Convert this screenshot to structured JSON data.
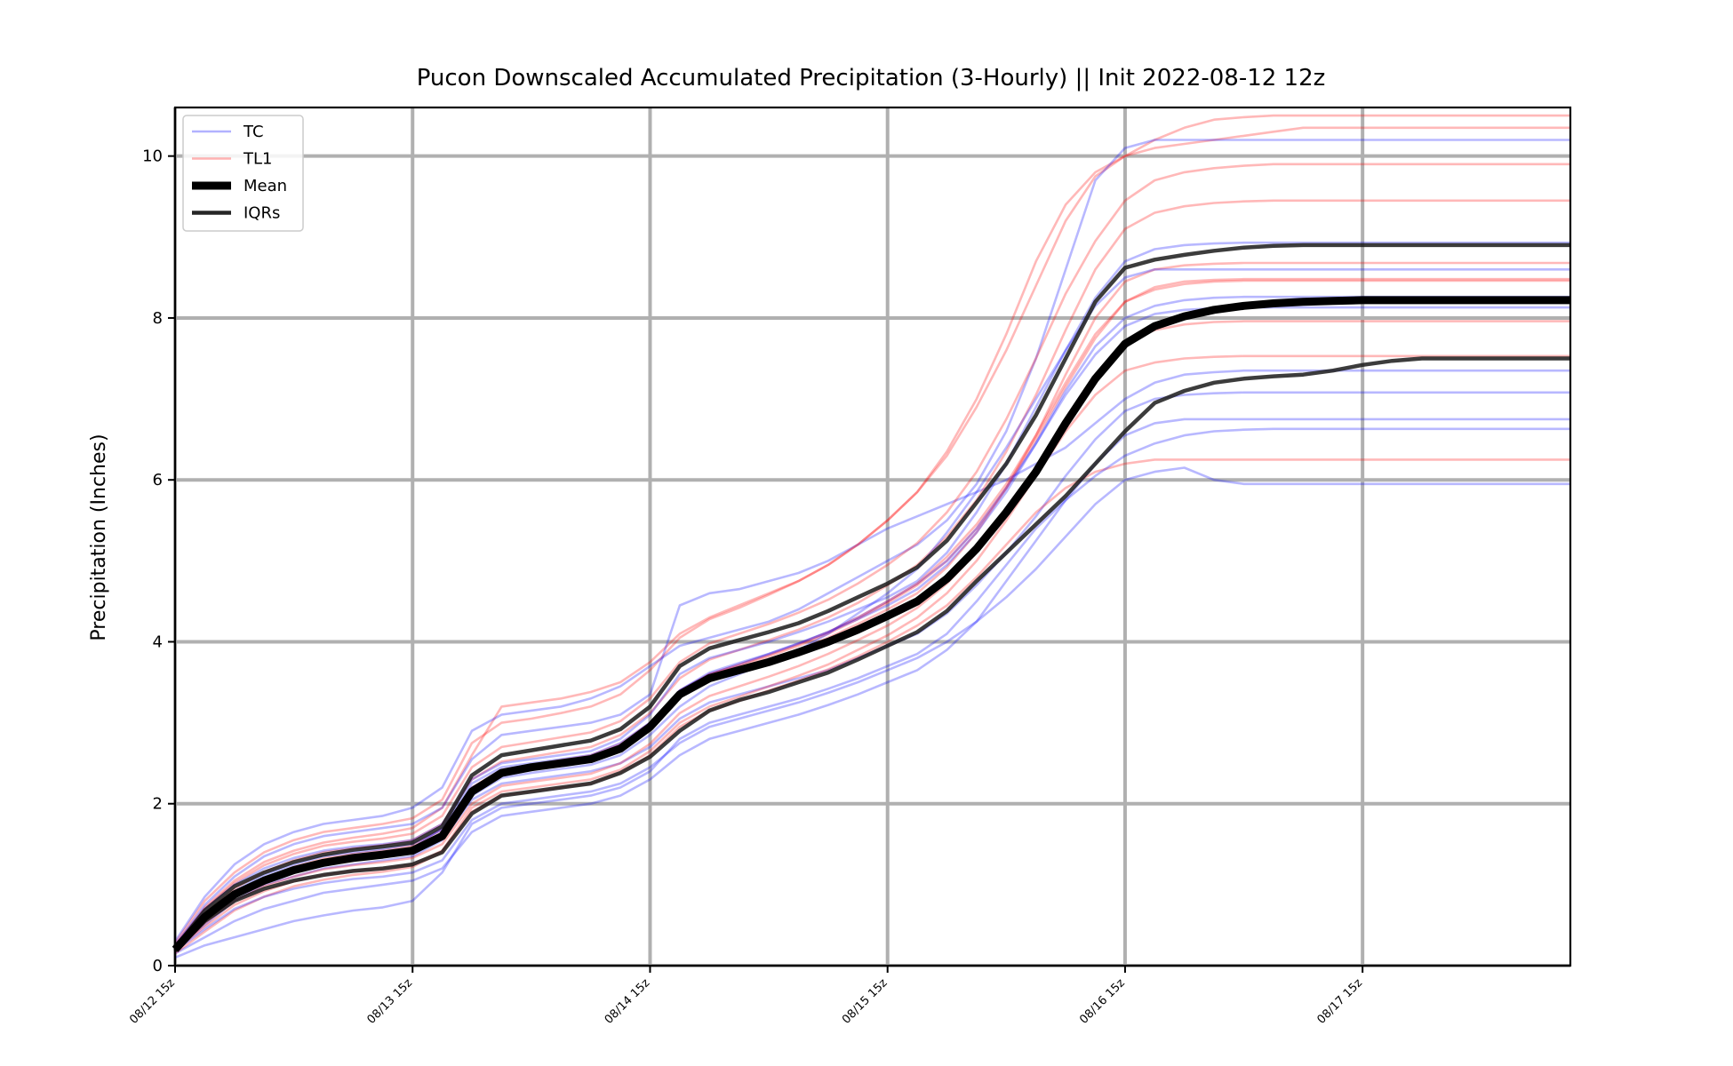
{
  "chart_data": {
    "type": "line",
    "title": "Pucon Downscaled Accumulated Precipitation (3-Hourly) || Init 2022-08-12 12z",
    "ylabel": "Precipitation (Inches)",
    "xlabel": "",
    "xlim": [
      0,
      47
    ],
    "ylim": [
      0,
      10.6
    ],
    "grid": true,
    "legend_position": "top-left",
    "x_ticks": [
      {
        "x": 0,
        "label": "08/12 15z"
      },
      {
        "x": 8,
        "label": "08/13 15z"
      },
      {
        "x": 16,
        "label": "08/14 15z"
      },
      {
        "x": 24,
        "label": "08/15 15z"
      },
      {
        "x": 32,
        "label": "08/16 15z"
      },
      {
        "x": 40,
        "label": "08/17 15z"
      }
    ],
    "y_ticks": [
      0,
      2,
      4,
      6,
      8,
      10
    ],
    "legend": [
      {
        "label": "TC",
        "color": "#0000ff",
        "style": "thin-light"
      },
      {
        "label": "TL1",
        "color": "#ff0000",
        "style": "thin-light"
      },
      {
        "label": "Mean",
        "color": "#000000",
        "style": "thick"
      },
      {
        "label": "IQRs",
        "color": "#000000",
        "style": "medium"
      }
    ],
    "colors": {
      "TC": "#0000ff",
      "TL1": "#ff0000",
      "Mean": "#000000",
      "IQRs": "#1a1a1a"
    },
    "x": [
      0,
      1,
      2,
      3,
      4,
      5,
      6,
      7,
      8,
      9,
      10,
      11,
      12,
      13,
      14,
      15,
      16,
      17,
      18,
      19,
      20,
      21,
      22,
      23,
      24,
      25,
      26,
      27,
      28,
      29,
      30,
      31,
      32,
      33,
      34,
      35,
      36,
      37,
      38,
      39,
      40,
      41,
      42,
      43,
      44,
      45,
      46,
      47
    ],
    "series": [
      {
        "name": "Mean",
        "values": [
          0.2,
          0.6,
          0.88,
          1.05,
          1.18,
          1.27,
          1.33,
          1.37,
          1.42,
          1.6,
          2.15,
          2.38,
          2.45,
          2.5,
          2.55,
          2.68,
          2.95,
          3.35,
          3.55,
          3.65,
          3.75,
          3.87,
          4.0,
          4.15,
          4.32,
          4.5,
          4.78,
          5.15,
          5.6,
          6.1,
          6.7,
          7.25,
          7.68,
          7.9,
          8.02,
          8.1,
          8.15,
          8.18,
          8.2,
          8.21,
          8.22,
          8.22,
          8.22,
          8.22,
          8.22,
          8.22,
          8.22,
          8.22
        ]
      },
      {
        "name": "IQRs",
        "values": [
          0.22,
          0.68,
          0.98,
          1.15,
          1.28,
          1.37,
          1.43,
          1.47,
          1.52,
          1.72,
          2.35,
          2.6,
          2.66,
          2.72,
          2.78,
          2.92,
          3.2,
          3.7,
          3.92,
          4.02,
          4.12,
          4.23,
          4.38,
          4.55,
          4.72,
          4.92,
          5.25,
          5.72,
          6.2,
          6.8,
          7.5,
          8.2,
          8.62,
          8.72,
          8.78,
          8.83,
          8.87,
          8.89,
          8.9,
          8.9,
          8.9,
          8.9,
          8.9,
          8.9,
          8.9,
          8.9,
          8.9,
          8.9
        ]
      },
      {
        "name": "IQRs",
        "values": [
          0.18,
          0.55,
          0.8,
          0.95,
          1.05,
          1.12,
          1.17,
          1.2,
          1.25,
          1.4,
          1.88,
          2.1,
          2.15,
          2.2,
          2.25,
          2.38,
          2.58,
          2.9,
          3.15,
          3.28,
          3.38,
          3.5,
          3.62,
          3.78,
          3.95,
          4.12,
          4.38,
          4.75,
          5.1,
          5.45,
          5.8,
          6.2,
          6.6,
          6.95,
          7.1,
          7.2,
          7.25,
          7.28,
          7.3,
          7.35,
          7.42,
          7.47,
          7.5,
          7.5,
          7.5,
          7.5,
          7.5,
          7.5
        ]
      }
    ],
    "ensemble": {
      "TC": [
        [
          0.2,
          0.5,
          0.8,
          1.0,
          1.1,
          1.2,
          1.25,
          1.3,
          1.35,
          1.55,
          2.05,
          2.25,
          2.3,
          2.35,
          2.4,
          2.5,
          2.7,
          3.05,
          3.25,
          3.35,
          3.45,
          3.55,
          3.65,
          3.8,
          3.95,
          4.1,
          4.35,
          4.7,
          5.1,
          5.55,
          6.05,
          6.5,
          6.85,
          7.0,
          7.05,
          7.07,
          7.08,
          7.08,
          7.08,
          7.08,
          7.08,
          7.08,
          7.08,
          7.08,
          7.08,
          7.08,
          7.08,
          7.08
        ],
        [
          0.25,
          0.75,
          1.1,
          1.35,
          1.5,
          1.6,
          1.65,
          1.7,
          1.75,
          1.95,
          2.55,
          2.85,
          2.9,
          2.95,
          3.0,
          3.1,
          3.35,
          4.45,
          4.6,
          4.65,
          4.75,
          4.85,
          5.0,
          5.2,
          5.4,
          5.55,
          5.7,
          5.85,
          6.0,
          6.2,
          6.4,
          6.7,
          7.0,
          7.2,
          7.3,
          7.33,
          7.35,
          7.35,
          7.35,
          7.35,
          7.35,
          7.35,
          7.35,
          7.35,
          7.35,
          7.35,
          7.35,
          7.35
        ],
        [
          0.15,
          0.35,
          0.55,
          0.7,
          0.8,
          0.9,
          0.95,
          1.0,
          1.05,
          1.2,
          1.65,
          1.85,
          1.9,
          1.95,
          2.0,
          2.1,
          2.3,
          2.6,
          2.8,
          2.9,
          3.0,
          3.1,
          3.22,
          3.35,
          3.5,
          3.65,
          3.9,
          4.25,
          4.75,
          5.25,
          5.75,
          6.2,
          6.55,
          6.7,
          6.75,
          6.75,
          6.75,
          6.75,
          6.75,
          6.75,
          6.75,
          6.75,
          6.75,
          6.75,
          6.75,
          6.75,
          6.75,
          6.75
        ],
        [
          0.3,
          0.85,
          1.25,
          1.5,
          1.65,
          1.75,
          1.8,
          1.85,
          1.95,
          2.2,
          2.9,
          3.1,
          3.15,
          3.2,
          3.3,
          3.45,
          3.7,
          3.95,
          4.05,
          4.15,
          4.25,
          4.4,
          4.6,
          4.8,
          5.0,
          5.2,
          5.5,
          5.95,
          6.6,
          7.5,
          8.6,
          9.7,
          10.1,
          10.2,
          10.2,
          10.2,
          10.2,
          10.2,
          10.2,
          10.2,
          10.2,
          10.2,
          10.2,
          10.2,
          10.2,
          10.2,
          10.2,
          10.2
        ],
        [
          0.2,
          0.55,
          0.85,
          1.05,
          1.2,
          1.3,
          1.35,
          1.4,
          1.45,
          1.7,
          2.25,
          2.45,
          2.5,
          2.55,
          2.6,
          2.75,
          3.0,
          3.4,
          3.6,
          3.72,
          3.85,
          3.98,
          4.12,
          4.3,
          4.5,
          4.72,
          5.0,
          5.4,
          5.9,
          6.45,
          7.05,
          7.55,
          7.9,
          8.05,
          8.1,
          8.12,
          8.13,
          8.13,
          8.13,
          8.13,
          8.13,
          8.13,
          8.13,
          8.13,
          8.13,
          8.13,
          8.13,
          8.13
        ],
        [
          0.1,
          0.25,
          0.35,
          0.45,
          0.55,
          0.62,
          0.68,
          0.72,
          0.8,
          1.15,
          1.75,
          1.95,
          2.0,
          2.05,
          2.1,
          2.2,
          2.4,
          2.8,
          3.0,
          3.1,
          3.2,
          3.3,
          3.42,
          3.55,
          3.7,
          3.85,
          4.1,
          4.5,
          4.95,
          5.4,
          5.75,
          6.05,
          6.3,
          6.45,
          6.55,
          6.6,
          6.62,
          6.63,
          6.63,
          6.63,
          6.63,
          6.63,
          6.63,
          6.63,
          6.63,
          6.63,
          6.63,
          6.63
        ],
        [
          0.22,
          0.62,
          0.9,
          1.08,
          1.2,
          1.28,
          1.33,
          1.37,
          1.42,
          1.58,
          2.1,
          2.32,
          2.38,
          2.43,
          2.48,
          2.6,
          2.85,
          3.2,
          3.45,
          3.6,
          3.75,
          3.9,
          4.1,
          4.35,
          4.6,
          4.9,
          5.35,
          5.85,
          6.4,
          7.0,
          7.6,
          8.15,
          8.5,
          8.6,
          8.6,
          8.6,
          8.6,
          8.6,
          8.6,
          8.6,
          8.6,
          8.6,
          8.6,
          8.6,
          8.6,
          8.6,
          8.6,
          8.6
        ],
        [
          0.18,
          0.45,
          0.7,
          0.85,
          0.95,
          1.02,
          1.07,
          1.1,
          1.15,
          1.3,
          1.8,
          2.0,
          2.05,
          2.1,
          2.15,
          2.25,
          2.45,
          2.75,
          2.95,
          3.05,
          3.15,
          3.25,
          3.37,
          3.5,
          3.65,
          3.8,
          4.0,
          4.25,
          4.55,
          4.9,
          5.3,
          5.7,
          6.0,
          6.1,
          6.15,
          6.0,
          5.95,
          5.95,
          5.95,
          5.95,
          5.95,
          5.95,
          5.95,
          5.95,
          5.95,
          5.95,
          5.95,
          5.95
        ],
        [
          0.25,
          0.7,
          1.0,
          1.2,
          1.33,
          1.42,
          1.47,
          1.5,
          1.55,
          1.75,
          2.3,
          2.5,
          2.55,
          2.6,
          2.65,
          2.8,
          3.1,
          3.6,
          3.8,
          3.9,
          4.0,
          4.12,
          4.25,
          4.4,
          4.55,
          4.75,
          5.1,
          5.6,
          6.2,
          6.9,
          7.6,
          8.25,
          8.7,
          8.85,
          8.9,
          8.92,
          8.93,
          8.93,
          8.93,
          8.93,
          8.93,
          8.93,
          8.93,
          8.93,
          8.93,
          8.93,
          8.93,
          8.93
        ],
        [
          0.2,
          0.6,
          0.92,
          1.12,
          1.25,
          1.35,
          1.4,
          1.44,
          1.5,
          1.68,
          2.2,
          2.4,
          2.46,
          2.52,
          2.58,
          2.72,
          3.0,
          3.4,
          3.62,
          3.74,
          3.85,
          3.98,
          4.12,
          4.28,
          4.45,
          4.65,
          4.95,
          5.35,
          5.85,
          6.45,
          7.1,
          7.65,
          8.0,
          8.15,
          8.22,
          8.25,
          8.26,
          8.26,
          8.26,
          8.26,
          8.26,
          8.26,
          8.26,
          8.26,
          8.26,
          8.26,
          8.26,
          8.26
        ]
      ],
      "TL1": [
        [
          0.25,
          0.72,
          1.05,
          1.28,
          1.42,
          1.52,
          1.58,
          1.63,
          1.7,
          1.95,
          2.6,
          3.2,
          3.25,
          3.3,
          3.38,
          3.5,
          3.75,
          4.1,
          4.3,
          4.45,
          4.6,
          4.75,
          4.95,
          5.2,
          5.5,
          5.85,
          6.3,
          6.9,
          7.6,
          8.4,
          9.2,
          9.75,
          10.0,
          10.1,
          10.15,
          10.2,
          10.25,
          10.3,
          10.35,
          10.35,
          10.35,
          10.35,
          10.35,
          10.35,
          10.35,
          10.35,
          10.35,
          10.35
        ],
        [
          0.2,
          0.55,
          0.85,
          1.05,
          1.18,
          1.28,
          1.33,
          1.37,
          1.42,
          1.6,
          2.15,
          2.4,
          2.45,
          2.5,
          2.55,
          2.68,
          2.95,
          3.35,
          3.55,
          3.65,
          3.78,
          3.9,
          4.05,
          4.22,
          4.4,
          4.6,
          4.92,
          5.35,
          5.9,
          6.55,
          7.3,
          8.0,
          8.45,
          8.6,
          8.65,
          8.67,
          8.68,
          8.68,
          8.68,
          8.68,
          8.68,
          8.68,
          8.68,
          8.68,
          8.68,
          8.68,
          8.68,
          8.68
        ],
        [
          0.18,
          0.48,
          0.75,
          0.92,
          1.04,
          1.12,
          1.17,
          1.2,
          1.25,
          1.42,
          1.95,
          2.15,
          2.2,
          2.25,
          2.3,
          2.42,
          2.65,
          3.0,
          3.2,
          3.32,
          3.45,
          3.58,
          3.72,
          3.9,
          4.08,
          4.3,
          4.6,
          5.0,
          5.5,
          6.05,
          6.6,
          7.05,
          7.35,
          7.45,
          7.5,
          7.52,
          7.53,
          7.53,
          7.53,
          7.53,
          7.53,
          7.53,
          7.53,
          7.53,
          7.53,
          7.53,
          7.53,
          7.53
        ],
        [
          0.28,
          0.8,
          1.15,
          1.4,
          1.55,
          1.65,
          1.7,
          1.75,
          1.82,
          2.05,
          2.75,
          3.0,
          3.05,
          3.12,
          3.2,
          3.35,
          3.65,
          4.05,
          4.28,
          4.42,
          4.58,
          4.75,
          4.95,
          5.2,
          5.5,
          5.85,
          6.35,
          7.0,
          7.8,
          8.7,
          9.4,
          9.8,
          10.0,
          10.2,
          10.35,
          10.45,
          10.48,
          10.5,
          10.5,
          10.5,
          10.5,
          10.5,
          10.5,
          10.5,
          10.5,
          10.5,
          10.5,
          10.5
        ],
        [
          0.2,
          0.6,
          0.88,
          1.08,
          1.22,
          1.32,
          1.38,
          1.42,
          1.48,
          1.68,
          2.2,
          2.42,
          2.48,
          2.54,
          2.6,
          2.74,
          3.0,
          3.4,
          3.6,
          3.7,
          3.82,
          3.95,
          4.1,
          4.28,
          4.48,
          4.7,
          5.0,
          5.4,
          5.9,
          6.5,
          7.15,
          7.75,
          8.2,
          8.38,
          8.45,
          8.47,
          8.48,
          8.48,
          8.48,
          8.48,
          8.48,
          8.48,
          8.48,
          8.48,
          8.48,
          8.48,
          8.48,
          8.48
        ],
        [
          0.15,
          0.42,
          0.68,
          0.85,
          0.98,
          1.06,
          1.12,
          1.16,
          1.22,
          1.4,
          1.9,
          2.1,
          2.15,
          2.2,
          2.25,
          2.38,
          2.6,
          2.95,
          3.15,
          3.27,
          3.4,
          3.52,
          3.66,
          3.82,
          4.0,
          4.2,
          4.45,
          4.8,
          5.2,
          5.6,
          5.9,
          6.1,
          6.2,
          6.25,
          6.25,
          6.25,
          6.25,
          6.25,
          6.25,
          6.25,
          6.25,
          6.25,
          6.25,
          6.25,
          6.25,
          6.25,
          6.25,
          6.25
        ],
        [
          0.22,
          0.65,
          0.95,
          1.16,
          1.3,
          1.4,
          1.45,
          1.49,
          1.55,
          1.75,
          2.3,
          2.52,
          2.58,
          2.64,
          2.7,
          2.85,
          3.12,
          3.55,
          3.78,
          3.9,
          4.02,
          4.15,
          4.3,
          4.48,
          4.7,
          4.95,
          5.3,
          5.75,
          6.35,
          7.05,
          7.85,
          8.6,
          9.1,
          9.3,
          9.38,
          9.42,
          9.44,
          9.45,
          9.45,
          9.45,
          9.45,
          9.45,
          9.45,
          9.45,
          9.45,
          9.45,
          9.45,
          9.45
        ],
        [
          0.18,
          0.52,
          0.8,
          0.98,
          1.1,
          1.19,
          1.24,
          1.28,
          1.33,
          1.5,
          2.0,
          2.22,
          2.27,
          2.32,
          2.37,
          2.5,
          2.74,
          3.12,
          3.33,
          3.45,
          3.57,
          3.7,
          3.85,
          4.02,
          4.2,
          4.42,
          4.72,
          5.1,
          5.6,
          6.15,
          6.75,
          7.3,
          7.7,
          7.85,
          7.92,
          7.95,
          7.96,
          7.96,
          7.96,
          7.96,
          7.96,
          7.96,
          7.96,
          7.96,
          7.96,
          7.96,
          7.96,
          7.96
        ],
        [
          0.24,
          0.7,
          1.02,
          1.24,
          1.38,
          1.48,
          1.53,
          1.57,
          1.63,
          1.85,
          2.45,
          2.7,
          2.76,
          2.82,
          2.88,
          3.02,
          3.3,
          3.75,
          3.98,
          4.1,
          4.22,
          4.36,
          4.52,
          4.72,
          4.95,
          5.22,
          5.6,
          6.1,
          6.75,
          7.5,
          8.3,
          8.95,
          9.45,
          9.7,
          9.8,
          9.85,
          9.88,
          9.9,
          9.9,
          9.9,
          9.9,
          9.9,
          9.9,
          9.9,
          9.9,
          9.9,
          9.9,
          9.9
        ],
        [
          0.2,
          0.58,
          0.86,
          1.06,
          1.19,
          1.28,
          1.34,
          1.38,
          1.44,
          1.62,
          2.18,
          2.4,
          2.46,
          2.52,
          2.58,
          2.72,
          2.98,
          3.38,
          3.6,
          3.72,
          3.84,
          3.97,
          4.12,
          4.3,
          4.5,
          4.72,
          5.05,
          5.45,
          5.95,
          6.55,
          7.2,
          7.8,
          8.2,
          8.35,
          8.42,
          8.45,
          8.46,
          8.46,
          8.46,
          8.46,
          8.46,
          8.46,
          8.46,
          8.46,
          8.46,
          8.46,
          8.46,
          8.46
        ]
      ]
    }
  }
}
